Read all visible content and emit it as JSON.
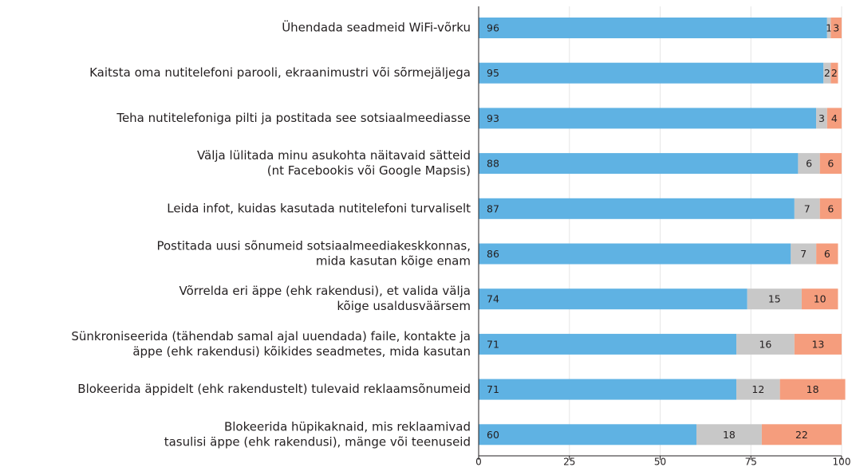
{
  "chart_data": {
    "type": "stacked-bar-horizontal",
    "categories": [
      [
        "Ühendada seadmeid WiFi-võrku"
      ],
      [
        "Kaitsta oma nutitelefoni parooli, ekraanimustri või sõrmejäljega"
      ],
      [
        "Teha nutitelefoniga pilti ja postitada see sotsiaalmeediasse"
      ],
      [
        "Välja lülitada minu asukohta näitavaid sätteid",
        "(nt Facebookis või Google Mapsis)"
      ],
      [
        "Leida infot, kuidas kasutada nutitelefoni turvaliselt"
      ],
      [
        "Postitada uusi sõnumeid sotsiaalmeediakeskkonnas,",
        "mida kasutan kõige enam"
      ],
      [
        "Võrrelda eri äppe (ehk rakendusi), et valida välja",
        "kõige usaldusväärsem"
      ],
      [
        "Sünkroniseerida (tähendab samal ajal uuendada) faile, kontakte ja",
        "äppe (ehk rakendusi) kõikides seadmetes, mida kasutan"
      ],
      [
        "Blokeerida äppidelt (ehk rakendustelt) tulevaid reklaamsõnumeid"
      ],
      [
        "Blokeerida hüpikaknaid, mis reklaamivad",
        "tasulisi äppe (ehk rakendusi), mänge või teenuseid"
      ]
    ],
    "series": [
      {
        "color": "#5fb2e3",
        "values": [
          96,
          95,
          93,
          88,
          87,
          86,
          74,
          71,
          71,
          60
        ]
      },
      {
        "color": "#c8c8c8",
        "values": [
          1,
          2,
          3,
          6,
          7,
          7,
          15,
          16,
          12,
          18
        ]
      },
      {
        "color": "#f59d7d",
        "values": [
          3,
          2,
          4,
          6,
          6,
          6,
          10,
          13,
          18,
          22
        ]
      }
    ],
    "xlim": [
      0,
      100
    ],
    "xticks": [
      0,
      25,
      50,
      75,
      100
    ],
    "grid": true
  }
}
